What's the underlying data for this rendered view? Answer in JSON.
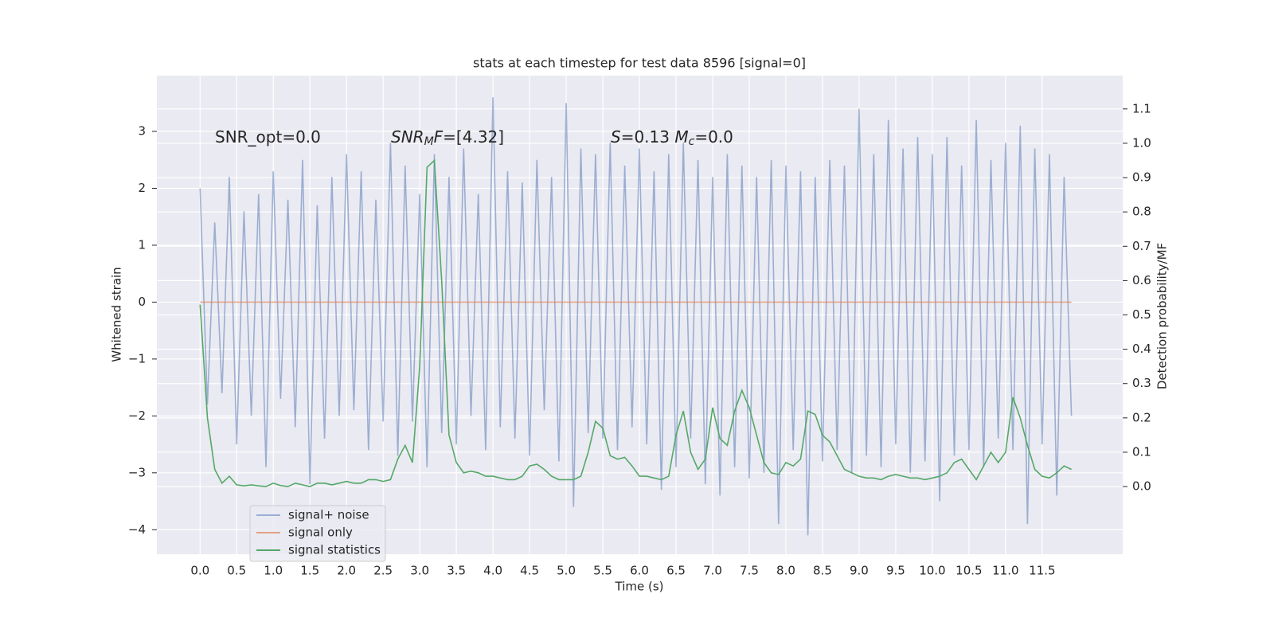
{
  "chart_data": {
    "type": "line",
    "title": "stats at each timestep for test data 8596 [signal=0]",
    "xlabel": "Time (s)",
    "ylabel": "Whitened strain",
    "y2label": "Detection probability/MF",
    "annotations": [
      [
        {
          "text": "SNR_opt=0.0",
          "style": "normal"
        }
      ],
      [
        {
          "text": "SNR",
          "style": "italic"
        },
        {
          "text": "M",
          "style": "sub"
        },
        {
          "text": "F",
          "style": "italic"
        },
        {
          "text": "=[4.32]",
          "style": "normal"
        }
      ],
      [
        {
          "text": "S",
          "style": "italic"
        },
        {
          "text": "=0.13   ",
          "style": "normal"
        },
        {
          "text": "M",
          "style": "italic"
        },
        {
          "text": "c",
          "style": "sub"
        },
        {
          "text": "=0.0",
          "style": "normal"
        }
      ]
    ],
    "x": [
      0.0,
      0.1,
      0.2,
      0.3,
      0.4,
      0.5,
      0.6,
      0.7,
      0.8,
      0.9,
      1.0,
      1.1,
      1.2,
      1.3,
      1.4,
      1.5,
      1.6,
      1.7,
      1.8,
      1.9,
      2.0,
      2.1,
      2.2,
      2.3,
      2.4,
      2.5,
      2.6,
      2.7,
      2.8,
      2.9,
      3.0,
      3.1,
      3.2,
      3.3,
      3.4,
      3.5,
      3.6,
      3.7,
      3.8,
      3.9,
      4.0,
      4.1,
      4.2,
      4.3,
      4.4,
      4.5,
      4.6,
      4.7,
      4.8,
      4.9,
      5.0,
      5.1,
      5.2,
      5.3,
      5.4,
      5.5,
      5.6,
      5.7,
      5.8,
      5.9,
      6.0,
      6.1,
      6.2,
      6.3,
      6.4,
      6.5,
      6.6,
      6.7,
      6.8,
      6.9,
      7.0,
      7.1,
      7.2,
      7.3,
      7.4,
      7.5,
      7.6,
      7.7,
      7.8,
      7.9,
      8.0,
      8.1,
      8.2,
      8.3,
      8.4,
      8.5,
      8.6,
      8.7,
      8.8,
      8.9,
      9.0,
      9.1,
      9.2,
      9.3,
      9.4,
      9.5,
      9.6,
      9.7,
      9.8,
      9.9,
      10.0,
      10.1,
      10.2,
      10.3,
      10.4,
      10.5,
      10.6,
      10.7,
      10.8,
      10.9,
      11.0,
      11.1,
      11.2,
      11.3,
      11.4,
      11.5,
      11.6,
      11.7,
      11.8,
      11.9
    ],
    "series": [
      {
        "name": "signal+ noise",
        "color": "#4c72b0",
        "opacity": 0.5,
        "values": [
          2.0,
          -1.8,
          1.4,
          -1.6,
          2.2,
          -2.5,
          1.6,
          -2.0,
          1.9,
          -2.9,
          2.3,
          -1.7,
          1.8,
          -2.2,
          2.5,
          -3.2,
          1.7,
          -2.4,
          2.2,
          -2.0,
          2.6,
          -1.9,
          2.3,
          -2.6,
          1.8,
          -2.1,
          2.8,
          -2.7,
          2.4,
          -2.1,
          1.9,
          -2.9,
          2.6,
          -2.3,
          2.2,
          -2.5,
          2.7,
          -2.0,
          1.9,
          -2.6,
          3.6,
          -2.2,
          2.3,
          -2.4,
          2.1,
          -2.7,
          2.5,
          -1.9,
          2.2,
          -2.8,
          3.5,
          -3.6,
          2.7,
          -2.3,
          2.6,
          -2.4,
          2.8,
          -2.6,
          2.4,
          -2.2,
          2.7,
          -2.5,
          2.3,
          -3.3,
          2.6,
          -2.9,
          2.8,
          -2.4,
          2.5,
          -3.2,
          2.2,
          -3.4,
          2.6,
          -2.9,
          2.4,
          -3.1,
          2.2,
          -3.0,
          2.5,
          -3.9,
          2.4,
          -2.6,
          2.3,
          -4.1,
          2.2,
          -2.8,
          2.5,
          -2.6,
          2.4,
          -3.0,
          3.4,
          -2.7,
          2.6,
          -2.9,
          3.2,
          -2.5,
          2.7,
          -3.0,
          2.9,
          -2.8,
          2.6,
          -3.5,
          2.9,
          -2.7,
          2.4,
          -2.6,
          3.2,
          -2.9,
          2.5,
          -2.4,
          2.8,
          -2.6,
          3.1,
          -3.9,
          2.7,
          -2.5,
          2.6,
          -3.4,
          2.2,
          -2.0
        ]
      },
      {
        "name": "signal only",
        "color": "#dd8452",
        "opacity": 0.7,
        "values": [
          0,
          0,
          0,
          0,
          0,
          0,
          0,
          0,
          0,
          0,
          0,
          0,
          0,
          0,
          0,
          0,
          0,
          0,
          0,
          0,
          0,
          0,
          0,
          0,
          0,
          0,
          0,
          0,
          0,
          0,
          0,
          0,
          0,
          0,
          0,
          0,
          0,
          0,
          0,
          0,
          0,
          0,
          0,
          0,
          0,
          0,
          0,
          0,
          0,
          0,
          0,
          0,
          0,
          0,
          0,
          0,
          0,
          0,
          0,
          0,
          0,
          0,
          0,
          0,
          0,
          0,
          0,
          0,
          0,
          0,
          0,
          0,
          0,
          0,
          0,
          0,
          0,
          0,
          0,
          0,
          0,
          0,
          0,
          0,
          0,
          0,
          0,
          0,
          0,
          0,
          0,
          0,
          0,
          0,
          0,
          0,
          0,
          0,
          0,
          0,
          0,
          0,
          0,
          0,
          0,
          0,
          0,
          0,
          0,
          0,
          0,
          0,
          0,
          0,
          0,
          0,
          0,
          0,
          0,
          0
        ]
      },
      {
        "name": "signal statistics",
        "color": "#55a868",
        "opacity": 1,
        "axis": "y2",
        "values": [
          0.53,
          0.2,
          0.05,
          0.01,
          0.03,
          0.005,
          0.002,
          0.005,
          0.002,
          0.0,
          0.01,
          0.003,
          0.0,
          0.01,
          0.005,
          0.0,
          0.01,
          0.01,
          0.005,
          0.01,
          0.015,
          0.01,
          0.01,
          0.02,
          0.02,
          0.015,
          0.02,
          0.08,
          0.12,
          0.07,
          0.35,
          0.93,
          0.95,
          0.6,
          0.15,
          0.07,
          0.04,
          0.045,
          0.04,
          0.03,
          0.03,
          0.025,
          0.02,
          0.02,
          0.03,
          0.06,
          0.065,
          0.05,
          0.03,
          0.02,
          0.02,
          0.02,
          0.03,
          0.1,
          0.19,
          0.17,
          0.09,
          0.08,
          0.085,
          0.06,
          0.03,
          0.03,
          0.025,
          0.02,
          0.03,
          0.15,
          0.22,
          0.1,
          0.05,
          0.08,
          0.23,
          0.14,
          0.12,
          0.22,
          0.28,
          0.23,
          0.15,
          0.07,
          0.04,
          0.035,
          0.07,
          0.06,
          0.08,
          0.22,
          0.21,
          0.15,
          0.13,
          0.09,
          0.05,
          0.04,
          0.03,
          0.025,
          0.025,
          0.02,
          0.03,
          0.035,
          0.03,
          0.025,
          0.025,
          0.02,
          0.025,
          0.03,
          0.04,
          0.07,
          0.08,
          0.05,
          0.02,
          0.06,
          0.1,
          0.07,
          0.1,
          0.26,
          0.2,
          0.12,
          0.05,
          0.03,
          0.025,
          0.04,
          0.06,
          0.05
        ]
      }
    ],
    "xlim": [
      -0.59,
      12.6
    ],
    "xticks": [
      {
        "value": 0,
        "label": "0.0"
      },
      {
        "value": 0.5,
        "label": "0.5"
      },
      {
        "value": 1,
        "label": "1.0"
      },
      {
        "value": 1.5,
        "label": "1.5"
      },
      {
        "value": 2,
        "label": "2.0"
      },
      {
        "value": 2.5,
        "label": "2.5"
      },
      {
        "value": 3,
        "label": "3.0"
      },
      {
        "value": 3.5,
        "label": "3.5"
      },
      {
        "value": 4,
        "label": "4.0"
      },
      {
        "value": 4.5,
        "label": "4.5"
      },
      {
        "value": 5,
        "label": "5.0"
      },
      {
        "value": 5.5,
        "label": "5.5"
      },
      {
        "value": 6,
        "label": "6.0"
      },
      {
        "value": 6.5,
        "label": "6.5"
      },
      {
        "value": 7,
        "label": "7.0"
      },
      {
        "value": 7.5,
        "label": "7.5"
      },
      {
        "value": 8,
        "label": "8.0"
      },
      {
        "value": 8.5,
        "label": "8.5"
      },
      {
        "value": 9,
        "label": "9.0"
      },
      {
        "value": 9.5,
        "label": "9.5"
      },
      {
        "value": 10,
        "label": "10.0"
      },
      {
        "value": 10.5,
        "label": "10.5"
      },
      {
        "value": 11,
        "label": "11.0"
      },
      {
        "value": 11.5,
        "label": "11.5"
      }
    ],
    "ylim": [
      -4.43,
      3.98
    ],
    "yticks": [
      {
        "value": -4,
        "label": "−4"
      },
      {
        "value": -3,
        "label": "−3"
      },
      {
        "value": -2,
        "label": "−2"
      },
      {
        "value": -1,
        "label": "−1"
      },
      0,
      1,
      2,
      3
    ],
    "y2lim": [
      -0.197,
      1.197
    ],
    "y2ticks": [
      {
        "value": 0,
        "label": "0.0"
      },
      {
        "value": 0.1,
        "label": "0.1"
      },
      {
        "value": 0.2,
        "label": "0.2"
      },
      {
        "value": 0.3,
        "label": "0.3"
      },
      {
        "value": 0.4,
        "label": "0.4"
      },
      {
        "value": 0.5,
        "label": "0.5"
      },
      {
        "value": 0.6,
        "label": "0.6"
      },
      {
        "value": 0.7,
        "label": "0.7"
      },
      {
        "value": 0.8,
        "label": "0.8"
      },
      {
        "value": 0.9,
        "label": "0.9"
      },
      {
        "value": 1,
        "label": "1.0"
      },
      {
        "value": 1.1,
        "label": "1.1"
      }
    ],
    "grid": true,
    "legend": "lower left"
  }
}
